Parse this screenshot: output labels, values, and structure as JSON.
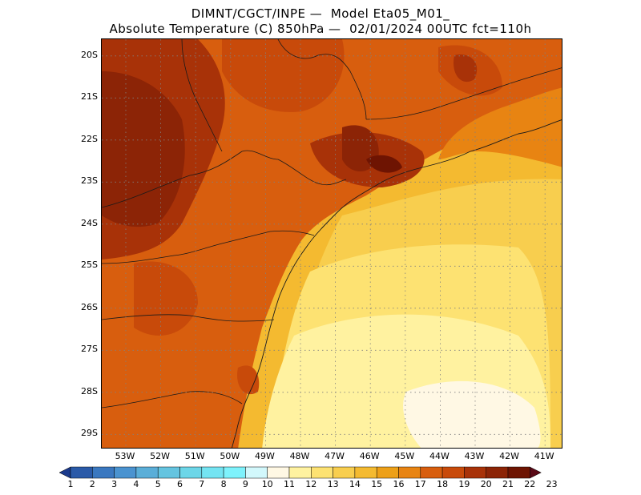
{
  "title": {
    "line1": "DIMNT/CGCT/INPE —  Model Eta05_M01_",
    "line2": "Absolute Temperature (C) 850hPa —  02/01/2024 00UTC fct=110h"
  },
  "axes": {
    "lat_labels": [
      "20S",
      "21S",
      "22S",
      "23S",
      "24S",
      "25S",
      "26S",
      "27S",
      "28S",
      "29S"
    ],
    "lon_labels": [
      "53W",
      "52W",
      "51W",
      "50W",
      "49W",
      "48W",
      "47W",
      "46W",
      "45W",
      "44W",
      "43W",
      "42W",
      "41W"
    ]
  },
  "colorbar": {
    "labels": [
      "1",
      "2",
      "3",
      "4",
      "5",
      "6",
      "7",
      "8",
      "9",
      "10",
      "11",
      "12",
      "13",
      "14",
      "15",
      "16",
      "17",
      "18",
      "19",
      "20",
      "21",
      "22",
      "23"
    ],
    "colors": [
      "#1b3a8c",
      "#2a5aa8",
      "#3a78c0",
      "#4a93d0",
      "#5aaed8",
      "#64c4e0",
      "#6cd6e8",
      "#74e4f2",
      "#7ef2fc",
      "#d2f8fc",
      "#fff8e4",
      "#fff2a0",
      "#fde272",
      "#f8ce4e",
      "#f4ba30",
      "#eda018",
      "#e88412",
      "#d85e0e",
      "#c84a0a",
      "#a83208",
      "#8c2406",
      "#6e1402",
      "#5a0a16"
    ]
  },
  "map": {
    "grid": "dotted",
    "fill_colors": {
      "ocean_far": "#f8ce4e",
      "ocean_mid": "#fde272",
      "ocean_light": "#fff2a0",
      "ocean_palest": "#fff8e4",
      "land_warm": "#d85e0e",
      "land_hot": "#c84a0a",
      "land_hotter": "#a83208",
      "land_hottest": "#8c2406",
      "peak": "#6e1402",
      "orange_mid": "#e88412"
    }
  }
}
